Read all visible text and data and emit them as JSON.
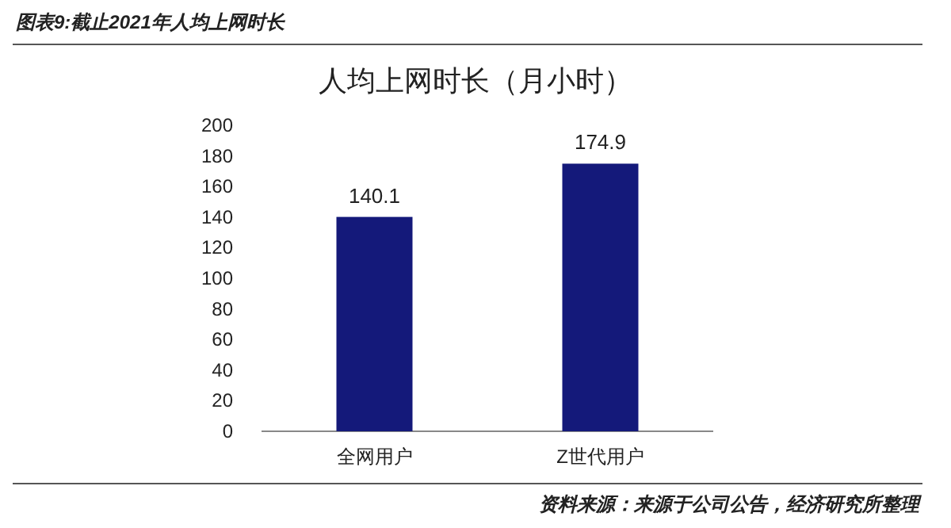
{
  "chart_data": {
    "type": "bar",
    "title": "人均上网时长（月小时）",
    "annotations": [
      "图表9:截止2021年人均上网时长",
      "资料来源：来源于公司公告，经济研究所整理"
    ],
    "categories": [
      "全网用户",
      "Z世代用户"
    ],
    "values": [
      140.1,
      174.9
    ],
    "color": "#14197a",
    "ylim": [
      0,
      200
    ],
    "yticks": [
      0,
      20,
      40,
      60,
      80,
      100,
      120,
      140,
      160,
      180,
      200
    ],
    "data_labels": true
  }
}
